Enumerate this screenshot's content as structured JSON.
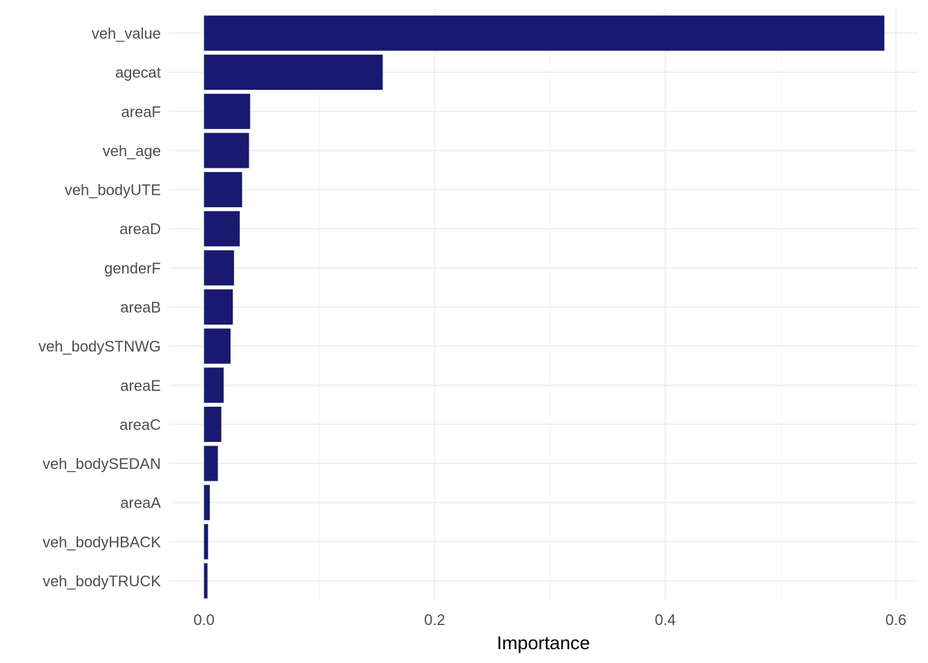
{
  "chart_data": {
    "type": "bar",
    "orientation": "horizontal",
    "title": "",
    "xlabel": "Importance",
    "ylabel": "",
    "categories": [
      "veh_value",
      "agecat",
      "areaF",
      "veh_age",
      "veh_bodyUTE",
      "areaD",
      "genderF",
      "areaB",
      "veh_bodySTNWG",
      "areaE",
      "areaC",
      "veh_bodySEDAN",
      "areaA",
      "veh_bodyHBACK",
      "veh_bodyTRUCK"
    ],
    "values": [
      0.59,
      0.155,
      0.04,
      0.039,
      0.033,
      0.031,
      0.026,
      0.025,
      0.023,
      0.017,
      0.015,
      0.012,
      0.005,
      0.0035,
      0.003
    ],
    "xlim": [
      -0.03,
      0.62
    ],
    "x_ticks": [
      0.0,
      0.2,
      0.4,
      0.6
    ],
    "x_tick_labels": [
      "0.0",
      "0.2",
      "0.4",
      "0.6"
    ],
    "grid": true,
    "legend": "none",
    "bar_color": "#191970"
  }
}
